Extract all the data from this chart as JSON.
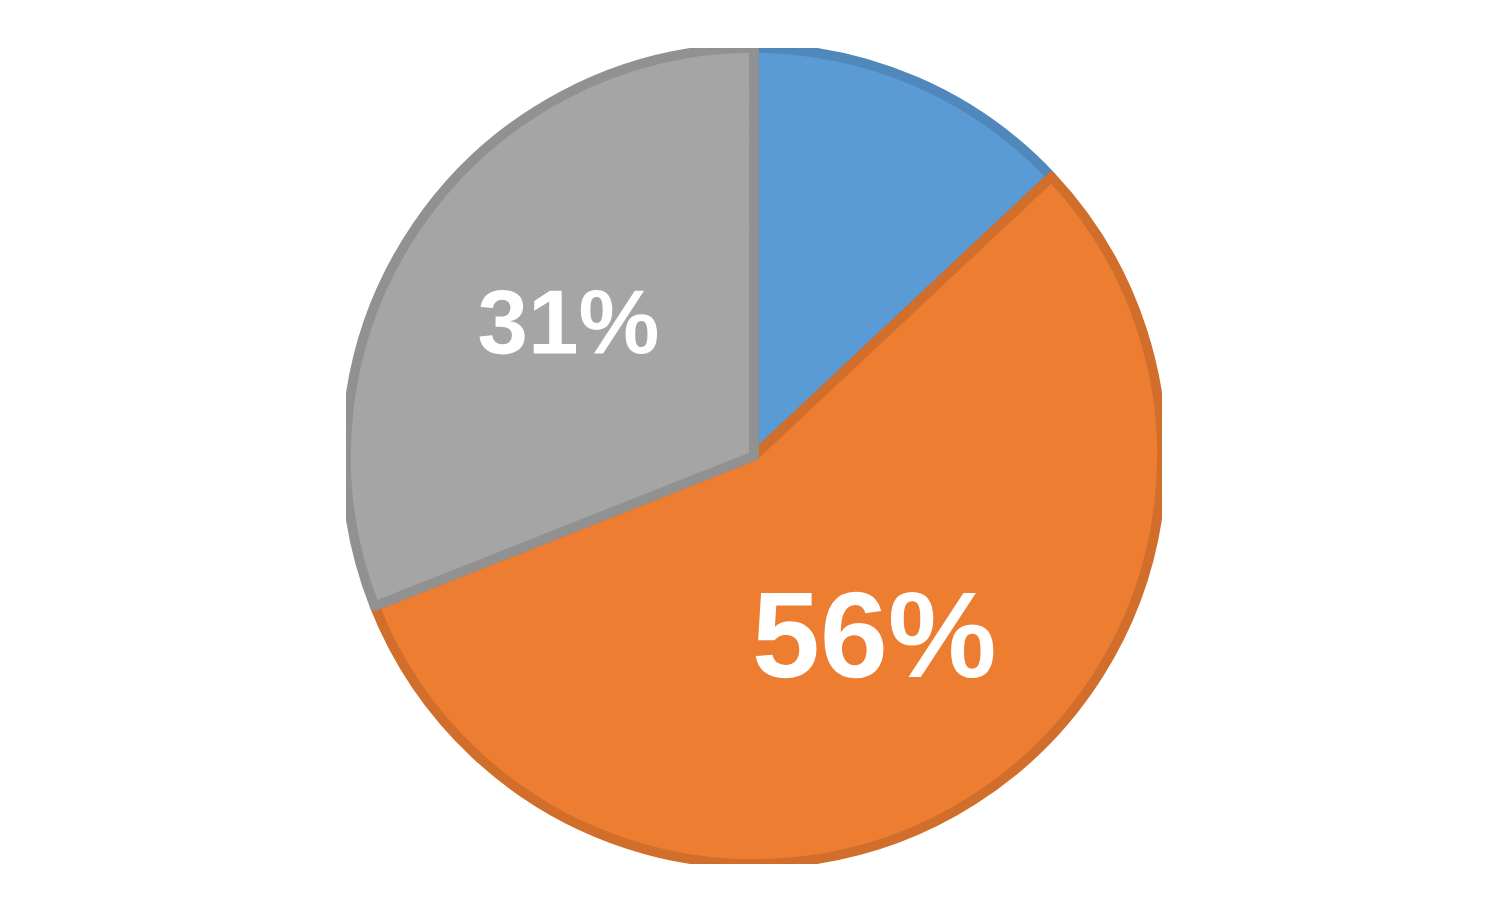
{
  "chart_data": {
    "type": "pie",
    "categories": [
      null,
      null,
      null
    ],
    "values": [
      13,
      56,
      31
    ],
    "colors": [
      "#5b9bd5",
      "#ed7d31",
      "#a5a5a5"
    ],
    "value_labels": [
      null,
      "56%",
      "31%"
    ]
  }
}
